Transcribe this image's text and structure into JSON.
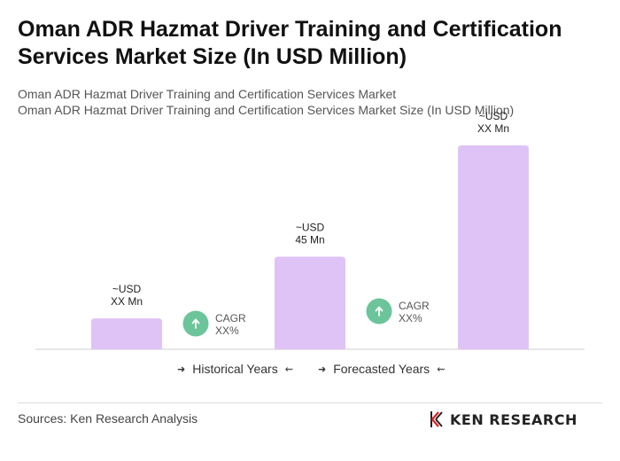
{
  "title": "Oman ADR Hazmat Driver Training and Certification Services Market Size (In USD Million)",
  "subtitle_1": "Oman ADR Hazmat Driver Training and Certification Services Market",
  "subtitle_2": "Oman ADR Hazmat Driver Training and Certification Services Market Size (In USD Million)",
  "chart_data": {
    "type": "bar",
    "categories": [
      "",
      "",
      ""
    ],
    "values": [
      15,
      45,
      99
    ],
    "bar_labels": [
      [
        "~USD",
        "XX Mn"
      ],
      [
        "~USD",
        "45 Mn"
      ],
      [
        "~USD",
        "XX Mn"
      ]
    ],
    "cagr_labels": [
      [
        "CAGR",
        "XX%"
      ],
      [
        "CAGR",
        "XX%"
      ]
    ],
    "bar_color": "#dfc3f7",
    "cagr_color": "#6cc49a",
    "grid": false
  },
  "legend": {
    "historical": "Historical Years",
    "forecasted": "Forecasted Years"
  },
  "sources": "Sources: Ken Research Analysis",
  "brand": "KEN RESEARCH"
}
